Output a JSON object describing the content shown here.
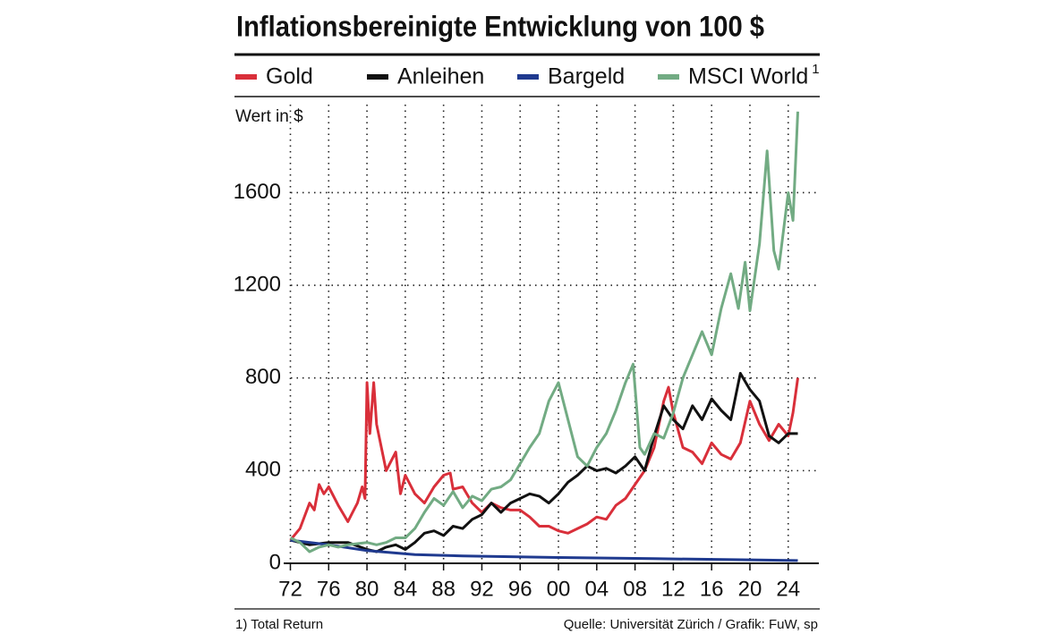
{
  "chart_data": {
    "type": "line",
    "title": "Inflationsbereinigte Entwicklung von 100 $",
    "y_label": "Wert in $",
    "footnote": "1) Total Return",
    "source": "Quelle: Universität Zürich / Grafik: FuW, sp",
    "xlim": [
      1971.3,
      2027.2
    ],
    "xticks": [
      {
        "value": 1972,
        "label": "72"
      },
      {
        "value": 1976,
        "label": "76"
      },
      {
        "value": 1980,
        "label": "80"
      },
      {
        "value": 1984,
        "label": "84"
      },
      {
        "value": 1988,
        "label": "88"
      },
      {
        "value": 1992,
        "label": "92"
      },
      {
        "value": 1996,
        "label": "96"
      },
      {
        "value": 2000,
        "label": "00"
      },
      {
        "value": 2004,
        "label": "04"
      },
      {
        "value": 2008,
        "label": "08"
      },
      {
        "value": 2012,
        "label": "12"
      },
      {
        "value": 2016,
        "label": "16"
      },
      {
        "value": 2020,
        "label": "20"
      },
      {
        "value": 2024,
        "label": "24"
      }
    ],
    "ylim": [
      0,
      1980
    ],
    "yticks": [
      0,
      400,
      800,
      1200,
      1600
    ],
    "grid": true,
    "series": [
      {
        "name": "Gold",
        "color": "#d92f3a",
        "x": [
          1972,
          1973,
          1974,
          1974.5,
          1975,
          1975.5,
          1976,
          1977,
          1978,
          1978.5,
          1979,
          1979.5,
          1979.8,
          1980,
          1980.3,
          1980.7,
          1981,
          1982,
          1983,
          1983.5,
          1984,
          1985,
          1986,
          1987,
          1988,
          1988.7,
          1989,
          1990,
          1991,
          1992,
          1993,
          1994,
          1995,
          1996,
          1997,
          1998,
          1999,
          2000,
          2001,
          2002,
          2003,
          2004,
          2005,
          2006,
          2007,
          2008,
          2009,
          2010,
          2011,
          2011.5,
          2012,
          2013,
          2014,
          2015,
          2016,
          2017,
          2018,
          2019,
          2020,
          2021,
          2022,
          2023,
          2024,
          2024.5,
          2025
        ],
        "values": [
          100,
          150,
          260,
          230,
          340,
          300,
          330,
          250,
          180,
          220,
          260,
          330,
          280,
          780,
          560,
          780,
          600,
          400,
          480,
          300,
          380,
          300,
          260,
          330,
          380,
          390,
          320,
          330,
          260,
          220,
          260,
          240,
          230,
          230,
          200,
          160,
          160,
          140,
          130,
          150,
          170,
          200,
          190,
          250,
          280,
          340,
          400,
          500,
          700,
          760,
          650,
          500,
          480,
          430,
          520,
          470,
          450,
          520,
          700,
          600,
          530,
          600,
          550,
          650,
          800
        ]
      },
      {
        "name": "Anleihen",
        "color": "#111111",
        "x": [
          1972,
          1974,
          1976,
          1978,
          1980,
          1981,
          1982,
          1983,
          1984,
          1985,
          1986,
          1987,
          1988,
          1989,
          1990,
          1991,
          1992,
          1993,
          1994,
          1995,
          1996,
          1997,
          1998,
          1999,
          2000,
          2001,
          2002,
          2003,
          2004,
          2005,
          2006,
          2007,
          2008,
          2009,
          2010,
          2011,
          2012,
          2013,
          2014,
          2015,
          2016,
          2017,
          2018,
          2019,
          2020,
          2021,
          2022,
          2023,
          2024,
          2025
        ],
        "values": [
          100,
          80,
          90,
          90,
          60,
          50,
          70,
          80,
          60,
          90,
          130,
          140,
          120,
          160,
          150,
          190,
          210,
          260,
          220,
          260,
          280,
          300,
          290,
          260,
          300,
          350,
          380,
          420,
          400,
          410,
          390,
          420,
          460,
          400,
          550,
          680,
          620,
          580,
          680,
          620,
          710,
          660,
          620,
          820,
          750,
          700,
          550,
          520,
          560,
          560
        ]
      },
      {
        "name": "Bargeld",
        "color": "#1f3a8f",
        "x": [
          1972,
          1976,
          1980,
          1985,
          1990,
          2000,
          2010,
          2020,
          2025
        ],
        "values": [
          100,
          80,
          55,
          38,
          32,
          25,
          20,
          15,
          12
        ]
      },
      {
        "name": "MSCI World",
        "note": "1",
        "color": "#72ab83",
        "x": [
          1972,
          1973,
          1974,
          1975,
          1976,
          1977,
          1978,
          1979,
          1980,
          1981,
          1982,
          1983,
          1984,
          1985,
          1986,
          1987,
          1988,
          1989,
          1990,
          1991,
          1992,
          1993,
          1994,
          1995,
          1996,
          1997,
          1998,
          1999,
          2000,
          2001,
          2002,
          2003,
          2004,
          2005,
          2006,
          2007,
          2007.8,
          2008.5,
          2009,
          2010,
          2011,
          2012,
          2013,
          2014,
          2015,
          2016,
          2017,
          2018,
          2018.8,
          2019.5,
          2020,
          2021,
          2021.8,
          2022.5,
          2023,
          2024,
          2024.5,
          2025
        ],
        "values": [
          110,
          90,
          50,
          70,
          80,
          70,
          80,
          85,
          90,
          80,
          90,
          110,
          110,
          150,
          220,
          280,
          250,
          310,
          240,
          290,
          270,
          320,
          330,
          360,
          430,
          500,
          560,
          700,
          780,
          620,
          460,
          420,
          500,
          560,
          660,
          780,
          860,
          500,
          470,
          560,
          540,
          650,
          800,
          900,
          1000,
          900,
          1100,
          1250,
          1100,
          1300,
          1090,
          1380,
          1780,
          1350,
          1270,
          1600,
          1480,
          1950
        ]
      }
    ]
  }
}
